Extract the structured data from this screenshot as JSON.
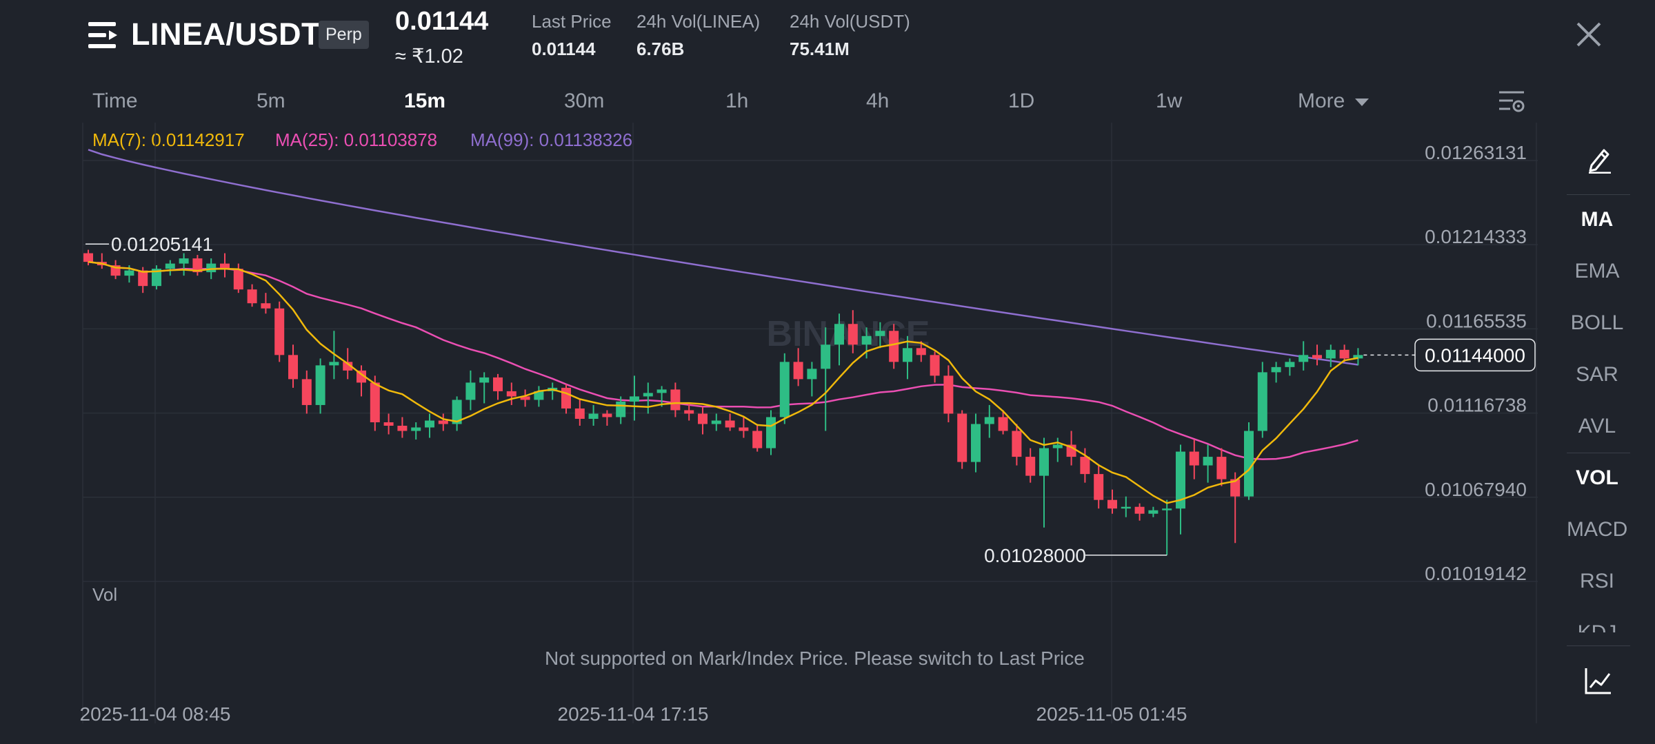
{
  "header": {
    "pair": "LINEA/USDT",
    "badge": "Perp",
    "price": "0.01144",
    "price_inr": "≈ ₹1.02",
    "stats": [
      {
        "label": "Last Price",
        "value": "0.01144"
      },
      {
        "label": "24h Vol(LINEA)",
        "value": "6.76B"
      },
      {
        "label": "24h Vol(USDT)",
        "value": "75.41M"
      }
    ]
  },
  "intervals": [
    {
      "label": "Time",
      "active": false
    },
    {
      "label": "5m",
      "active": false
    },
    {
      "label": "15m",
      "active": true
    },
    {
      "label": "30m",
      "active": false
    },
    {
      "label": "1h",
      "active": false
    },
    {
      "label": "4h",
      "active": false
    },
    {
      "label": "1D",
      "active": false
    },
    {
      "label": "1w",
      "active": false
    },
    {
      "label": "More",
      "active": false
    }
  ],
  "ma_legend": [
    {
      "label": "MA(7): 0.01142917",
      "color": "#f0b90b"
    },
    {
      "label": "MA(25): 0.01103878",
      "color": "#eb4fb3"
    },
    {
      "label": "MA(99): 0.01138326",
      "color": "#8f6fd0"
    }
  ],
  "colors": {
    "up": "#2ebd85",
    "down": "#f6465d",
    "background": "#1f232b",
    "grid": "#2b3039"
  },
  "watermark": "BINANCE",
  "chart_data": {
    "type": "candlestick",
    "interval": "15m",
    "y_ticks": [
      "0.01263131",
      "0.01214333",
      "0.01165535",
      "0.01116738",
      "0.01067940",
      "0.01019142"
    ],
    "x_ticks": [
      "2025-11-04 08:45",
      "2025-11-04 17:15",
      "2025-11-05 01:45"
    ],
    "current_price": "0.01144000",
    "high_label": "0.01205141",
    "low_label": "0.01028000",
    "candles": [
      [
        0.01203,
        0.01205,
        0.01196,
        0.01198
      ],
      [
        0.01198,
        0.01203,
        0.01194,
        0.01196
      ],
      [
        0.01196,
        0.01199,
        0.01188,
        0.0119
      ],
      [
        0.0119,
        0.01196,
        0.01186,
        0.01193
      ],
      [
        0.01193,
        0.01195,
        0.0118,
        0.01184
      ],
      [
        0.01184,
        0.01196,
        0.01182,
        0.01194
      ],
      [
        0.01194,
        0.01199,
        0.0119,
        0.01197
      ],
      [
        0.01197,
        0.01203,
        0.0119,
        0.012
      ],
      [
        0.012,
        0.01202,
        0.0119,
        0.01192
      ],
      [
        0.01192,
        0.012,
        0.01188,
        0.01197
      ],
      [
        0.01197,
        0.01203,
        0.01189,
        0.01194
      ],
      [
        0.01194,
        0.01197,
        0.0118,
        0.01182
      ],
      [
        0.01182,
        0.01185,
        0.01172,
        0.01174
      ],
      [
        0.01174,
        0.0118,
        0.01168,
        0.01171
      ],
      [
        0.01171,
        0.01175,
        0.0114,
        0.01144
      ],
      [
        0.01144,
        0.0115,
        0.01125,
        0.0113
      ],
      [
        0.0113,
        0.01135,
        0.0111,
        0.01115
      ],
      [
        0.01115,
        0.01142,
        0.0111,
        0.01138
      ],
      [
        0.01138,
        0.01158,
        0.0113,
        0.0114
      ],
      [
        0.0114,
        0.01148,
        0.0113,
        0.01135
      ],
      [
        0.01135,
        0.01138,
        0.0112,
        0.01128
      ],
      [
        0.01128,
        0.01132,
        0.011,
        0.01105
      ],
      [
        0.01105,
        0.0111,
        0.01098,
        0.01103
      ],
      [
        0.01103,
        0.01108,
        0.01096,
        0.011
      ],
      [
        0.011,
        0.01105,
        0.01095,
        0.01102
      ],
      [
        0.01102,
        0.0111,
        0.01096,
        0.01106
      ],
      [
        0.01106,
        0.0111,
        0.011,
        0.01104
      ],
      [
        0.01104,
        0.0112,
        0.011,
        0.01118
      ],
      [
        0.01118,
        0.01135,
        0.01112,
        0.01128
      ],
      [
        0.01128,
        0.01134,
        0.01116,
        0.01131
      ],
      [
        0.01131,
        0.01133,
        0.01118,
        0.01123
      ],
      [
        0.01123,
        0.01128,
        0.01115,
        0.0112
      ],
      [
        0.0112,
        0.01124,
        0.01114,
        0.01118
      ],
      [
        0.01118,
        0.01126,
        0.01114,
        0.01123
      ],
      [
        0.01123,
        0.01128,
        0.01118,
        0.01125
      ],
      [
        0.01125,
        0.01127,
        0.0111,
        0.01113
      ],
      [
        0.01113,
        0.01118,
        0.01103,
        0.01107
      ],
      [
        0.01107,
        0.01115,
        0.01103,
        0.0111
      ],
      [
        0.0111,
        0.01112,
        0.01103,
        0.01108
      ],
      [
        0.01108,
        0.0112,
        0.01104,
        0.01117
      ],
      [
        0.01117,
        0.01132,
        0.01106,
        0.0112
      ],
      [
        0.0112,
        0.01128,
        0.0111,
        0.01122
      ],
      [
        0.01122,
        0.01126,
        0.01114,
        0.01124
      ],
      [
        0.01124,
        0.01128,
        0.01108,
        0.01112
      ],
      [
        0.01112,
        0.01116,
        0.01106,
        0.0111
      ],
      [
        0.0111,
        0.01114,
        0.01098,
        0.01104
      ],
      [
        0.01104,
        0.0111,
        0.011,
        0.01106
      ],
      [
        0.01106,
        0.0111,
        0.011,
        0.01102
      ],
      [
        0.01102,
        0.01108,
        0.01096,
        0.011
      ],
      [
        0.011,
        0.01104,
        0.01088,
        0.0109
      ],
      [
        0.0109,
        0.01112,
        0.01086,
        0.01108
      ],
      [
        0.01108,
        0.01145,
        0.01104,
        0.0114
      ],
      [
        0.0114,
        0.01148,
        0.01126,
        0.0113
      ],
      [
        0.0113,
        0.0114,
        0.0112,
        0.01136
      ],
      [
        0.01136,
        0.0116,
        0.011,
        0.0115
      ],
      [
        0.0115,
        0.01168,
        0.01138,
        0.01162
      ],
      [
        0.01162,
        0.0117,
        0.01145,
        0.0115
      ],
      [
        0.0115,
        0.0116,
        0.01142,
        0.01155
      ],
      [
        0.01155,
        0.01163,
        0.01148,
        0.01158
      ],
      [
        0.01158,
        0.01162,
        0.01136,
        0.0114
      ],
      [
        0.0114,
        0.01155,
        0.0113,
        0.01148
      ],
      [
        0.01148,
        0.01152,
        0.0114,
        0.01144
      ],
      [
        0.01144,
        0.01146,
        0.01128,
        0.01132
      ],
      [
        0.01132,
        0.01138,
        0.01105,
        0.0111
      ],
      [
        0.0111,
        0.01112,
        0.01078,
        0.01082
      ],
      [
        0.01082,
        0.0111,
        0.01076,
        0.01104
      ],
      [
        0.01104,
        0.01115,
        0.01096,
        0.01108
      ],
      [
        0.01108,
        0.01112,
        0.01098,
        0.011
      ],
      [
        0.011,
        0.01104,
        0.0108,
        0.01085
      ],
      [
        0.01085,
        0.0109,
        0.0107,
        0.01074
      ],
      [
        0.01074,
        0.01096,
        0.01044,
        0.0109
      ],
      [
        0.0109,
        0.01096,
        0.01082,
        0.01092
      ],
      [
        0.01092,
        0.011,
        0.0108,
        0.01085
      ],
      [
        0.01085,
        0.0109,
        0.0107,
        0.01075
      ],
      [
        0.01075,
        0.0108,
        0.01055,
        0.0106
      ],
      [
        0.0106,
        0.01066,
        0.01052,
        0.01055
      ],
      [
        0.01055,
        0.01062,
        0.0105,
        0.01056
      ],
      [
        0.01056,
        0.01058,
        0.01048,
        0.01052
      ],
      [
        0.01052,
        0.01056,
        0.0105,
        0.01054
      ],
      [
        0.01054,
        0.0106,
        0.01028,
        0.01055
      ],
      [
        0.01055,
        0.01092,
        0.0104,
        0.01088
      ],
      [
        0.01088,
        0.01095,
        0.01072,
        0.0108
      ],
      [
        0.0108,
        0.01092,
        0.0107,
        0.01085
      ],
      [
        0.01085,
        0.0109,
        0.01068,
        0.01072
      ],
      [
        0.01072,
        0.01076,
        0.01035,
        0.01062
      ],
      [
        0.01062,
        0.01105,
        0.0106,
        0.011
      ],
      [
        0.011,
        0.0114,
        0.01096,
        0.01134
      ],
      [
        0.01134,
        0.0114,
        0.01128,
        0.01137
      ],
      [
        0.01137,
        0.01142,
        0.01132,
        0.0114
      ],
      [
        0.0114,
        0.01152,
        0.01135,
        0.01144
      ],
      [
        0.01144,
        0.0115,
        0.01138,
        0.01142
      ],
      [
        0.01142,
        0.0115,
        0.01137,
        0.01147
      ],
      [
        0.01147,
        0.0115,
        0.0114,
        0.01142
      ],
      [
        0.01142,
        0.01148,
        0.01138,
        0.01144
      ]
    ]
  },
  "volume_panel": {
    "label": "Vol",
    "notice": "Not supported on Mark/Index Price. Please switch to Last Price"
  },
  "sidebar": [
    {
      "label": "MA",
      "active": true
    },
    {
      "label": "EMA",
      "active": false
    },
    {
      "label": "BOLL",
      "active": false
    },
    {
      "label": "SAR",
      "active": false
    },
    {
      "label": "AVL",
      "active": false
    },
    {
      "label": "VOL",
      "active": true
    },
    {
      "label": "MACD",
      "active": false
    },
    {
      "label": "RSI",
      "active": false
    },
    {
      "label": "KDJ",
      "active": false
    }
  ]
}
